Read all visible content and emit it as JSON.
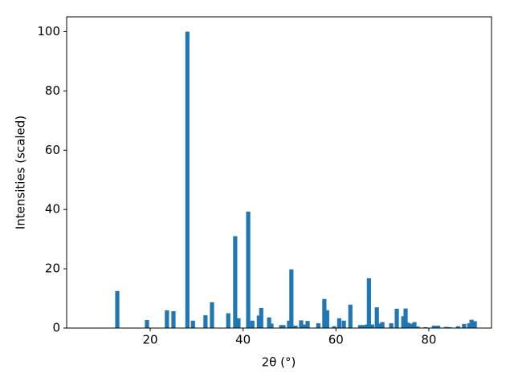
{
  "chart_data": {
    "type": "bar",
    "x_label": "2θ (°)",
    "y_label": "Intensities (scaled)",
    "color": "#1f77b4",
    "x": [
      12.9,
      19.3,
      23.6,
      25.0,
      28.0,
      29.2,
      31.9,
      33.3,
      36.8,
      38.3,
      39.0,
      41.1,
      42.0,
      43.4,
      43.9,
      45.6,
      46.1,
      48.2,
      48.7,
      49.9,
      50.4,
      51.3,
      52.5,
      53.0,
      53.9,
      56.2,
      57.5,
      58.1,
      59.6,
      60.7,
      61.7,
      63.1,
      65.2,
      65.8,
      66.7,
      67.1,
      67.8,
      68.8,
      69.3,
      70.0,
      71.9,
      73.1,
      74.5,
      75.0,
      75.5,
      76.2,
      76.9,
      77.6,
      79.3,
      81.1,
      82.0,
      83.7,
      84.5,
      86.3,
      87.6,
      88.7,
      89.2,
      89.9
    ],
    "values": [
      12.5,
      2.7,
      6,
      5.7,
      100,
      2.5,
      4.3,
      8.7,
      5,
      31,
      3.3,
      39.3,
      2.5,
      4.2,
      6.8,
      3.6,
      1.5,
      1,
      1,
      2.5,
      19.8,
      0.8,
      2.6,
      1.2,
      2.4,
      1.6,
      9.8,
      6,
      0.6,
      3.3,
      2.5,
      7.9,
      1,
      1,
      1.2,
      16.8,
      1.2,
      7,
      1.5,
      2,
      1.6,
      6.5,
      4,
      6.6,
      1.8,
      1.5,
      2,
      0.5,
      0.3,
      0.8,
      0.8,
      0.4,
      0.3,
      0.6,
      1.4,
      1.6,
      2.8,
      2.3
    ],
    "xlim": [
      2,
      93.5
    ],
    "xticks": [
      20,
      40,
      60,
      80
    ],
    "ylim": [
      0,
      105
    ],
    "yticks": [
      0,
      20,
      40,
      60,
      80,
      100
    ]
  }
}
